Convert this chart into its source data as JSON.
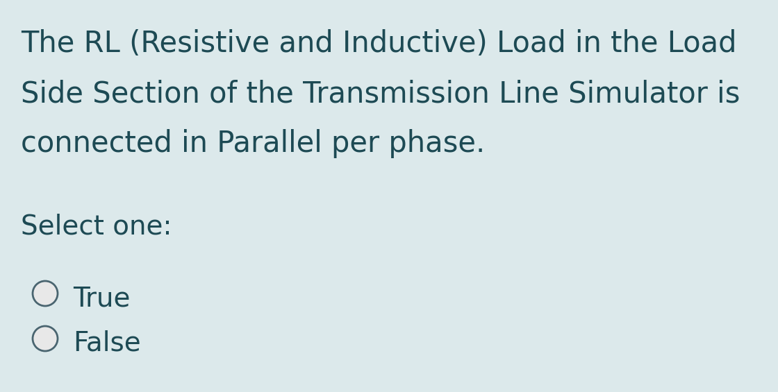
{
  "background_color": "#dce9eb",
  "text_color": "#1d4a54",
  "question_lines": [
    "The RL (Resistive and Inductive) Load in the Load",
    "Side Section of the Transmission Line Simulator is",
    "connected in Parallel per phase."
  ],
  "select_label": "Select one:",
  "options": [
    "True",
    "False"
  ],
  "font_size_question": 30,
  "font_size_select": 28,
  "font_size_options": 28,
  "radio_fill_color": "#e8e8e8",
  "radio_edge_color": "#4a6570",
  "radio_linewidth": 2.0
}
